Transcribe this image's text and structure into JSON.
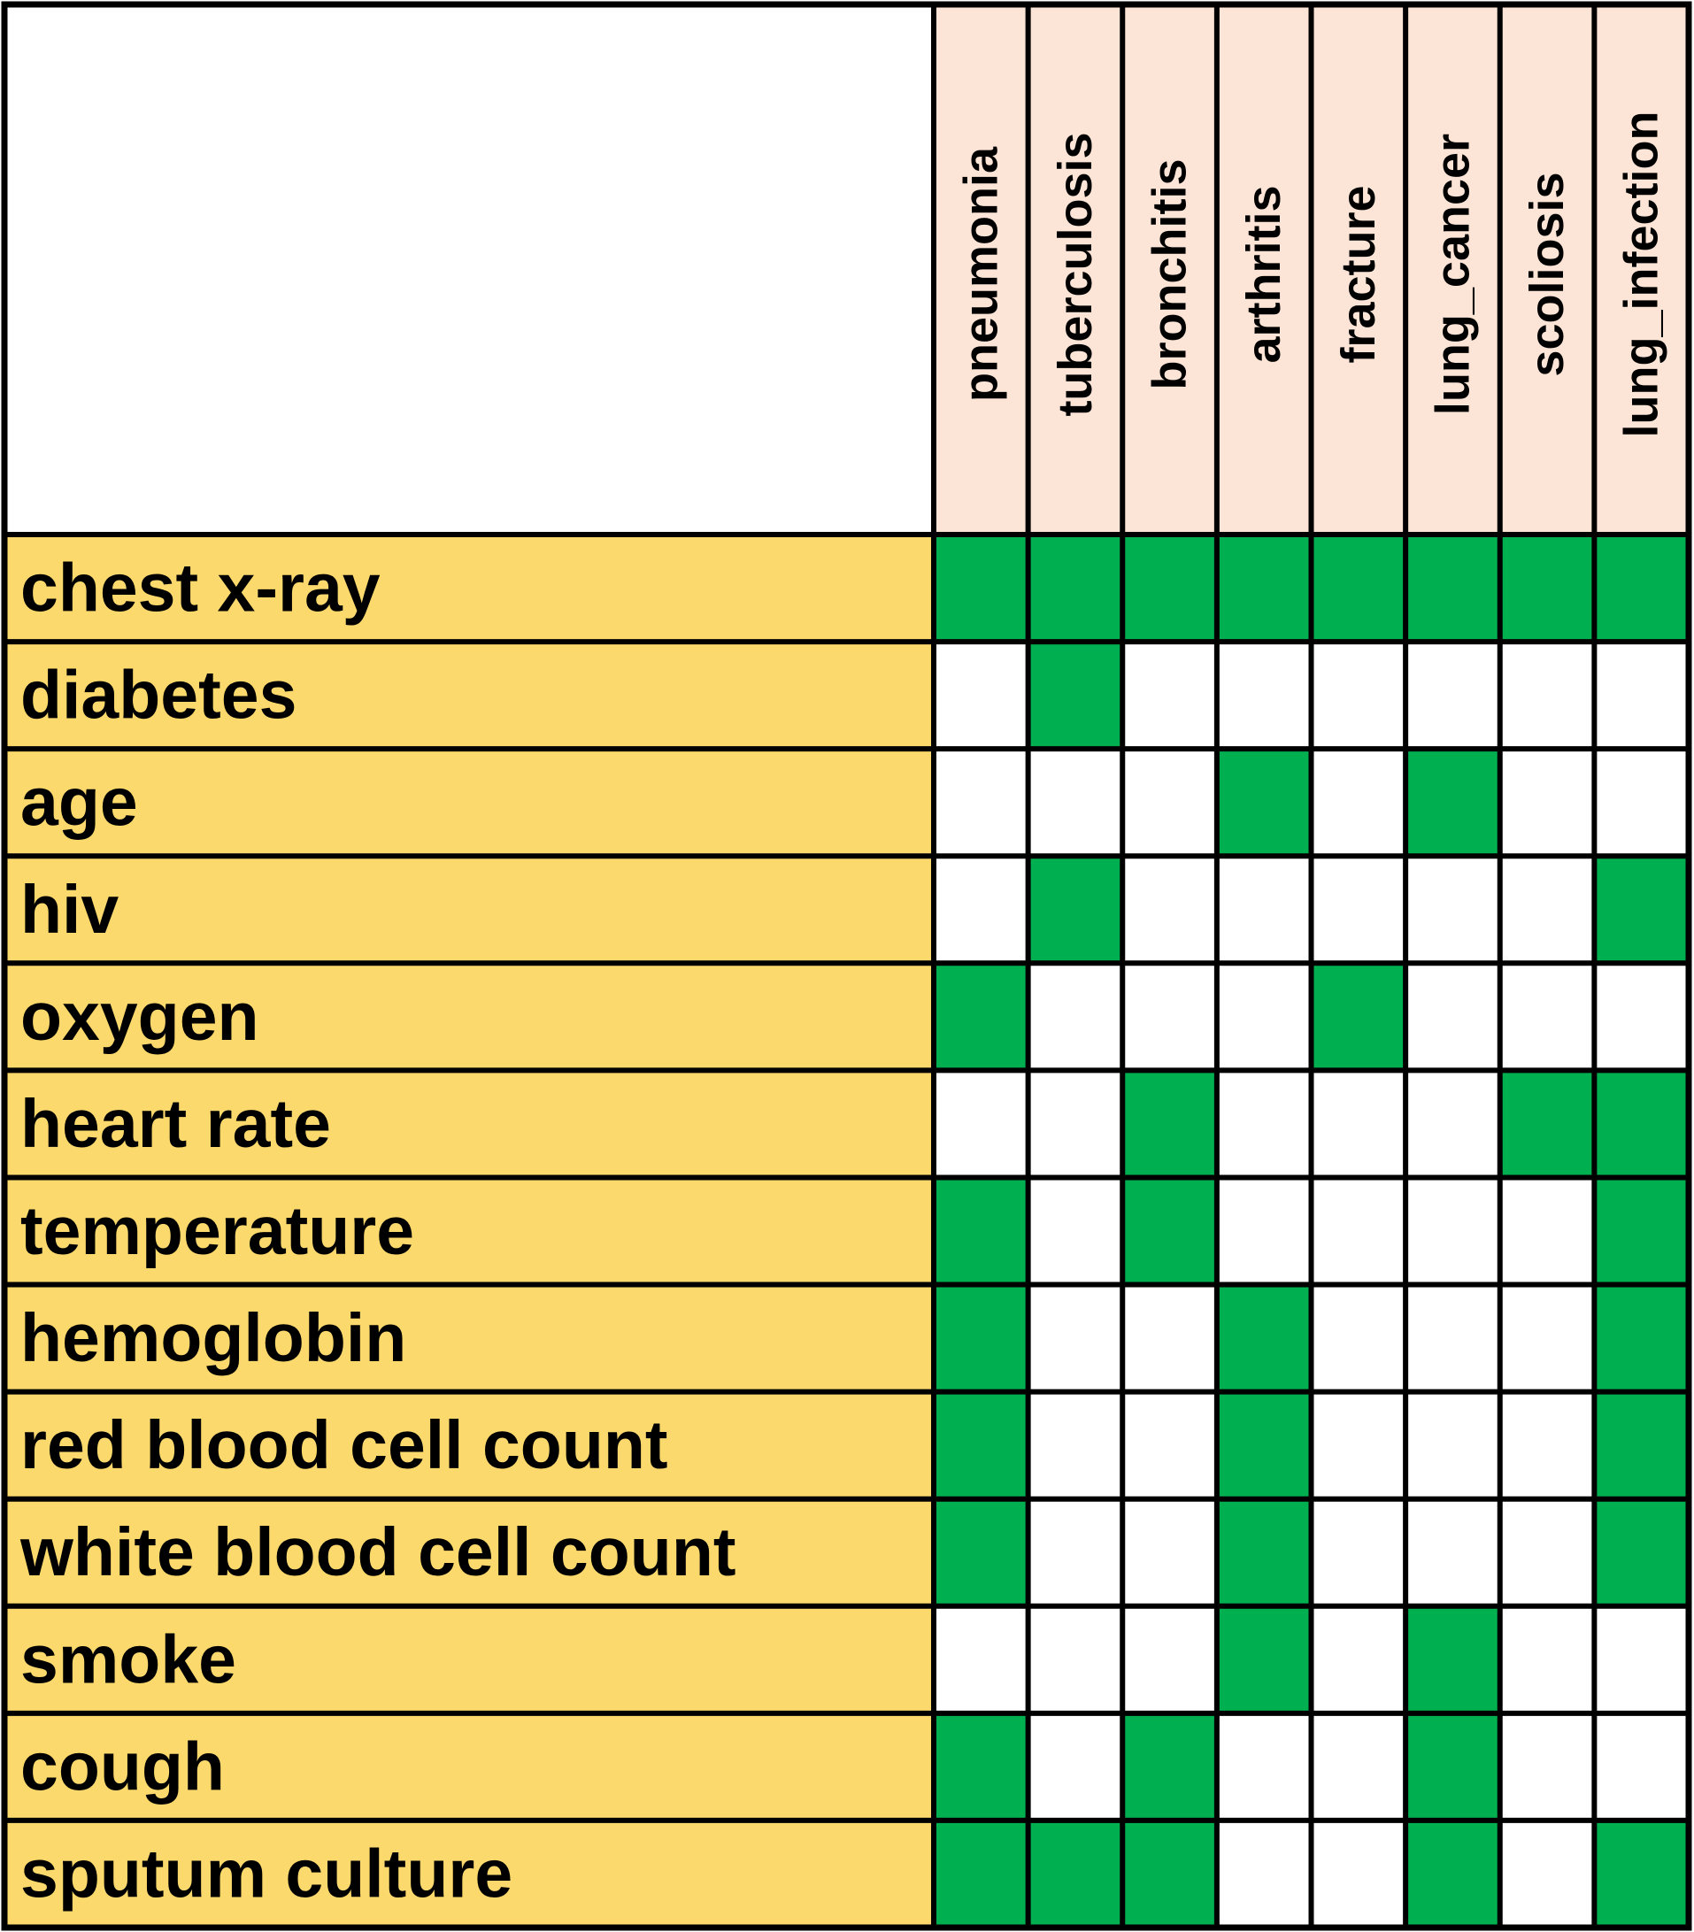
{
  "chart_data": {
    "type": "heatmap",
    "columns": [
      "pneumonia",
      "tuberculosis",
      "bronchitis",
      "arthritis",
      "fracture",
      "lung_cancer",
      "scoliosis",
      "lung_infection"
    ],
    "rows": [
      {
        "label": "chest x-ray",
        "values": [
          1,
          1,
          1,
          1,
          1,
          1,
          1,
          1
        ]
      },
      {
        "label": "diabetes",
        "values": [
          0,
          1,
          0,
          0,
          0,
          0,
          0,
          0
        ]
      },
      {
        "label": "age",
        "values": [
          0,
          0,
          0,
          1,
          0,
          1,
          0,
          0
        ]
      },
      {
        "label": "hiv",
        "values": [
          0,
          1,
          0,
          0,
          0,
          0,
          0,
          1
        ]
      },
      {
        "label": "oxygen",
        "values": [
          1,
          0,
          0,
          0,
          1,
          0,
          0,
          0
        ]
      },
      {
        "label": "heart rate",
        "values": [
          0,
          0,
          1,
          0,
          0,
          0,
          1,
          1
        ]
      },
      {
        "label": "temperature",
        "values": [
          1,
          0,
          1,
          0,
          0,
          0,
          0,
          1
        ]
      },
      {
        "label": "hemoglobin",
        "values": [
          1,
          0,
          0,
          1,
          0,
          0,
          0,
          1
        ]
      },
      {
        "label": "red blood cell count",
        "values": [
          1,
          0,
          0,
          1,
          0,
          0,
          0,
          1
        ]
      },
      {
        "label": "white blood cell count",
        "values": [
          1,
          0,
          0,
          1,
          0,
          0,
          0,
          1
        ]
      },
      {
        "label": "smoke",
        "values": [
          0,
          0,
          0,
          1,
          0,
          1,
          0,
          0
        ]
      },
      {
        "label": "cough",
        "values": [
          1,
          0,
          1,
          0,
          0,
          1,
          0,
          0
        ]
      },
      {
        "label": "sputum culture",
        "values": [
          1,
          1,
          1,
          0,
          0,
          1,
          0,
          1
        ]
      }
    ],
    "colors": {
      "present": "#00b050",
      "absent": "#ffffff",
      "row_label_bg": "#fcd96c",
      "column_header_bg": "#fce4d6",
      "corner_bg": "#ffffff",
      "grid_line": "#000000"
    }
  }
}
